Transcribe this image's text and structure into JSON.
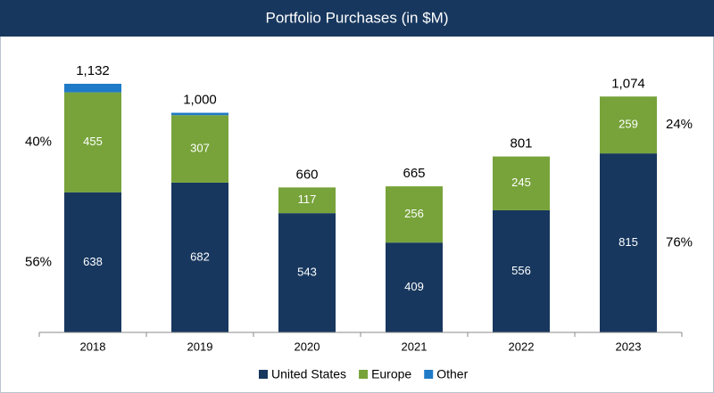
{
  "chart_data": {
    "type": "stacked_bar",
    "title": "Portfolio Purchases (in $M)",
    "categories": [
      "2018",
      "2019",
      "2020",
      "2021",
      "2022",
      "2023"
    ],
    "series": [
      {
        "name": "United States",
        "color": "#17375e",
        "values": [
          638,
          682,
          543,
          409,
          556,
          815
        ]
      },
      {
        "name": "Europe",
        "color": "#77a33a",
        "values": [
          455,
          307,
          117,
          256,
          245,
          259
        ]
      },
      {
        "name": "Other",
        "color": "#1f7bc7",
        "values": [
          39,
          11,
          0,
          0,
          0,
          0
        ]
      }
    ],
    "totals": {
      "values": [
        1132,
        1000,
        660,
        665,
        801,
        1074
      ],
      "value_labels": [
        "1,132",
        "1,000",
        "660",
        "665",
        "801",
        "1,074"
      ]
    },
    "annotations": [
      {
        "text": "40%",
        "category": 0,
        "series": 1,
        "side": "left"
      },
      {
        "text": "56%",
        "category": 0,
        "series": 0,
        "side": "left"
      },
      {
        "text": "24%",
        "category": 5,
        "series": 1,
        "side": "right"
      },
      {
        "text": "76%",
        "category": 5,
        "series": 0,
        "side": "right"
      }
    ],
    "legend": "bottom"
  }
}
